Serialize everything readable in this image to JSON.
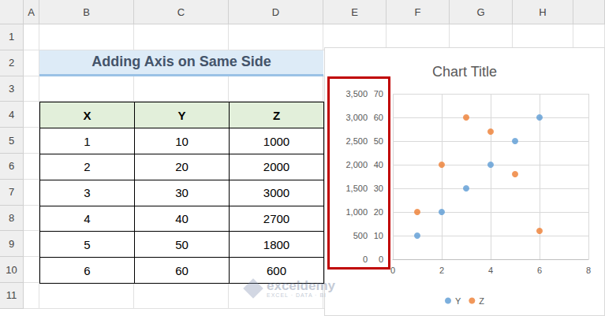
{
  "sheet": {
    "columns": [
      "A",
      "B",
      "C",
      "D",
      "E",
      "F",
      "G",
      "H"
    ],
    "rows": [
      1,
      2,
      3,
      4,
      5,
      6,
      7,
      8,
      9,
      10,
      11
    ],
    "title": "Adding Axis on Same Side",
    "table": {
      "header": [
        "X",
        "Y",
        "Z"
      ],
      "rows": [
        [
          1,
          10,
          1000
        ],
        [
          2,
          20,
          2000
        ],
        [
          3,
          30,
          3000
        ],
        [
          4,
          40,
          2700
        ],
        [
          5,
          50,
          1800
        ],
        [
          6,
          60,
          600
        ]
      ]
    },
    "watermark": {
      "name": "exceldemy",
      "tagline": "EXCEL · DATA · BI"
    }
  },
  "chart_data": {
    "type": "scatter",
    "title": "Chart Title",
    "x": [
      1,
      2,
      3,
      4,
      5,
      6
    ],
    "series": [
      {
        "name": "Y",
        "color": "#5b9bd5",
        "values": [
          10,
          20,
          30,
          40,
          50,
          60
        ]
      },
      {
        "name": "Z",
        "color": "#ed7d31",
        "values": [
          1000,
          2000,
          3000,
          2700,
          1800,
          600
        ],
        "axis": "y2"
      }
    ],
    "xlim": [
      0,
      8
    ],
    "xticks": [
      0,
      2,
      4,
      6,
      8
    ],
    "ylim": [
      0,
      70
    ],
    "yticks": [
      0,
      10,
      20,
      30,
      40,
      50,
      60,
      70
    ],
    "y2lim": [
      0,
      3500
    ],
    "y2ticks": [
      0,
      500,
      1000,
      1500,
      2000,
      2500,
      3000,
      3500
    ],
    "grid": true,
    "legend": "bottom",
    "marker": "circle"
  }
}
